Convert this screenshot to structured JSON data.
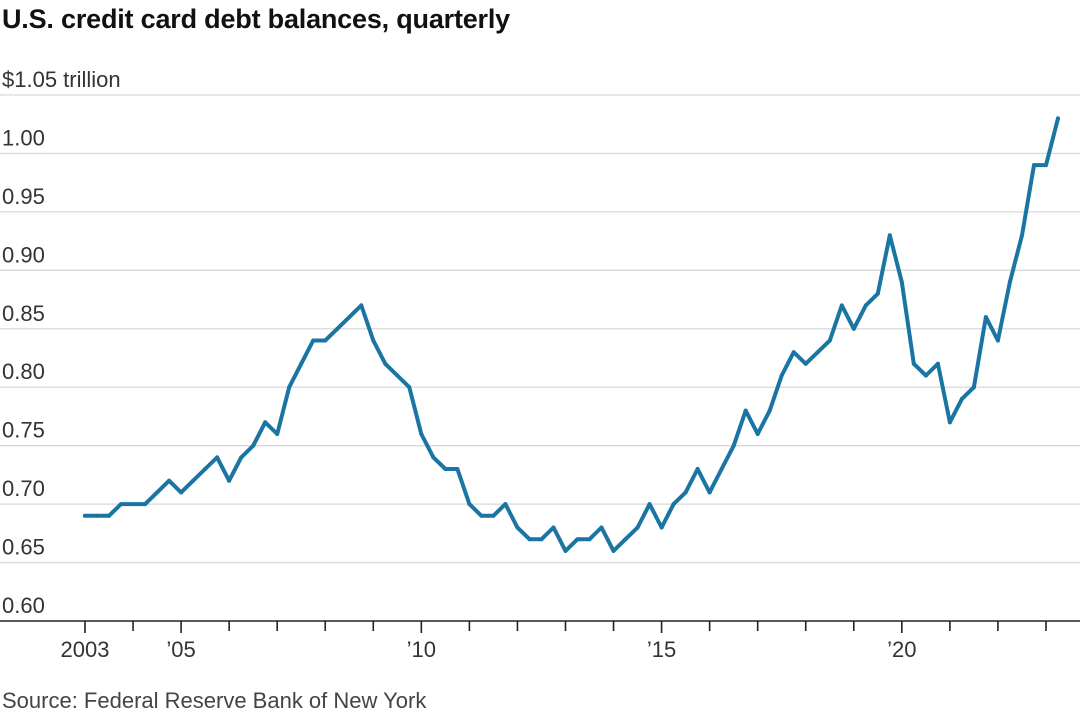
{
  "chart_data": {
    "type": "line",
    "title": "U.S. credit card debt balances, quarterly",
    "source": "Source: Federal Reserve Bank of New York",
    "y_unit_label": "trillion",
    "ylim": [
      0.6,
      1.05
    ],
    "xlim": [
      2003,
      2023.5
    ],
    "y_ticks": [
      {
        "value": 1.05,
        "label": "$1.05"
      },
      {
        "value": 1.0,
        "label": "1.00"
      },
      {
        "value": 0.95,
        "label": "0.95"
      },
      {
        "value": 0.9,
        "label": "0.90"
      },
      {
        "value": 0.85,
        "label": "0.85"
      },
      {
        "value": 0.8,
        "label": "0.80"
      },
      {
        "value": 0.75,
        "label": "0.75"
      },
      {
        "value": 0.7,
        "label": "0.70"
      },
      {
        "value": 0.65,
        "label": "0.65"
      },
      {
        "value": 0.6,
        "label": "0.60"
      }
    ],
    "x_labels": [
      {
        "value": 2003,
        "label": "2003"
      },
      {
        "value": 2005,
        "label": "’05"
      },
      {
        "value": 2010,
        "label": "’10"
      },
      {
        "value": 2015,
        "label": "’15"
      },
      {
        "value": 2020,
        "label": "’20"
      }
    ],
    "grid": true,
    "legend": "none",
    "colors": {
      "series": "#1a75a3",
      "grid": "#d9d9d9",
      "axis": "#222222"
    },
    "series": [
      {
        "x": [
          "2003 Q1",
          "2003 Q2",
          "2003 Q3",
          "2003 Q4",
          "2004 Q1",
          "2004 Q2",
          "2004 Q3",
          "2004 Q4",
          "2005 Q1",
          "2005 Q2",
          "2005 Q3",
          "2005 Q4",
          "2006 Q1",
          "2006 Q2",
          "2006 Q3",
          "2006 Q4",
          "2007 Q1",
          "2007 Q2",
          "2007 Q3",
          "2007 Q4",
          "2008 Q1",
          "2008 Q2",
          "2008 Q3",
          "2008 Q4",
          "2009 Q1",
          "2009 Q2",
          "2009 Q3",
          "2009 Q4",
          "2010 Q1",
          "2010 Q2",
          "2010 Q3",
          "2010 Q4",
          "2011 Q1",
          "2011 Q2",
          "2011 Q3",
          "2011 Q4",
          "2012 Q1",
          "2012 Q2",
          "2012 Q3",
          "2012 Q4",
          "2013 Q1",
          "2013 Q2",
          "2013 Q3",
          "2013 Q4",
          "2014 Q1",
          "2014 Q2",
          "2014 Q3",
          "2014 Q4",
          "2015 Q1",
          "2015 Q2",
          "2015 Q3",
          "2015 Q4",
          "2016 Q1",
          "2016 Q2",
          "2016 Q3",
          "2016 Q4",
          "2017 Q1",
          "2017 Q2",
          "2017 Q3",
          "2017 Q4",
          "2018 Q1",
          "2018 Q2",
          "2018 Q3",
          "2018 Q4",
          "2019 Q1",
          "2019 Q2",
          "2019 Q3",
          "2019 Q4",
          "2020 Q1",
          "2020 Q2",
          "2020 Q3",
          "2020 Q4",
          "2021 Q1",
          "2021 Q2",
          "2021 Q3",
          "2021 Q4",
          "2022 Q1",
          "2022 Q2",
          "2022 Q3",
          "2022 Q4",
          "2023 Q1",
          "2023 Q2"
        ],
        "values": [
          0.69,
          0.69,
          0.69,
          0.7,
          0.7,
          0.7,
          0.71,
          0.72,
          0.71,
          0.72,
          0.73,
          0.74,
          0.72,
          0.74,
          0.75,
          0.77,
          0.76,
          0.8,
          0.82,
          0.84,
          0.84,
          0.85,
          0.86,
          0.87,
          0.84,
          0.82,
          0.81,
          0.8,
          0.76,
          0.74,
          0.73,
          0.73,
          0.7,
          0.69,
          0.69,
          0.7,
          0.68,
          0.67,
          0.67,
          0.68,
          0.66,
          0.67,
          0.67,
          0.68,
          0.66,
          0.67,
          0.68,
          0.7,
          0.68,
          0.7,
          0.71,
          0.73,
          0.71,
          0.73,
          0.75,
          0.78,
          0.76,
          0.78,
          0.81,
          0.83,
          0.82,
          0.83,
          0.84,
          0.87,
          0.85,
          0.87,
          0.88,
          0.93,
          0.89,
          0.82,
          0.81,
          0.82,
          0.77,
          0.79,
          0.8,
          0.86,
          0.84,
          0.89,
          0.93,
          0.99,
          0.99,
          1.03
        ]
      }
    ]
  }
}
